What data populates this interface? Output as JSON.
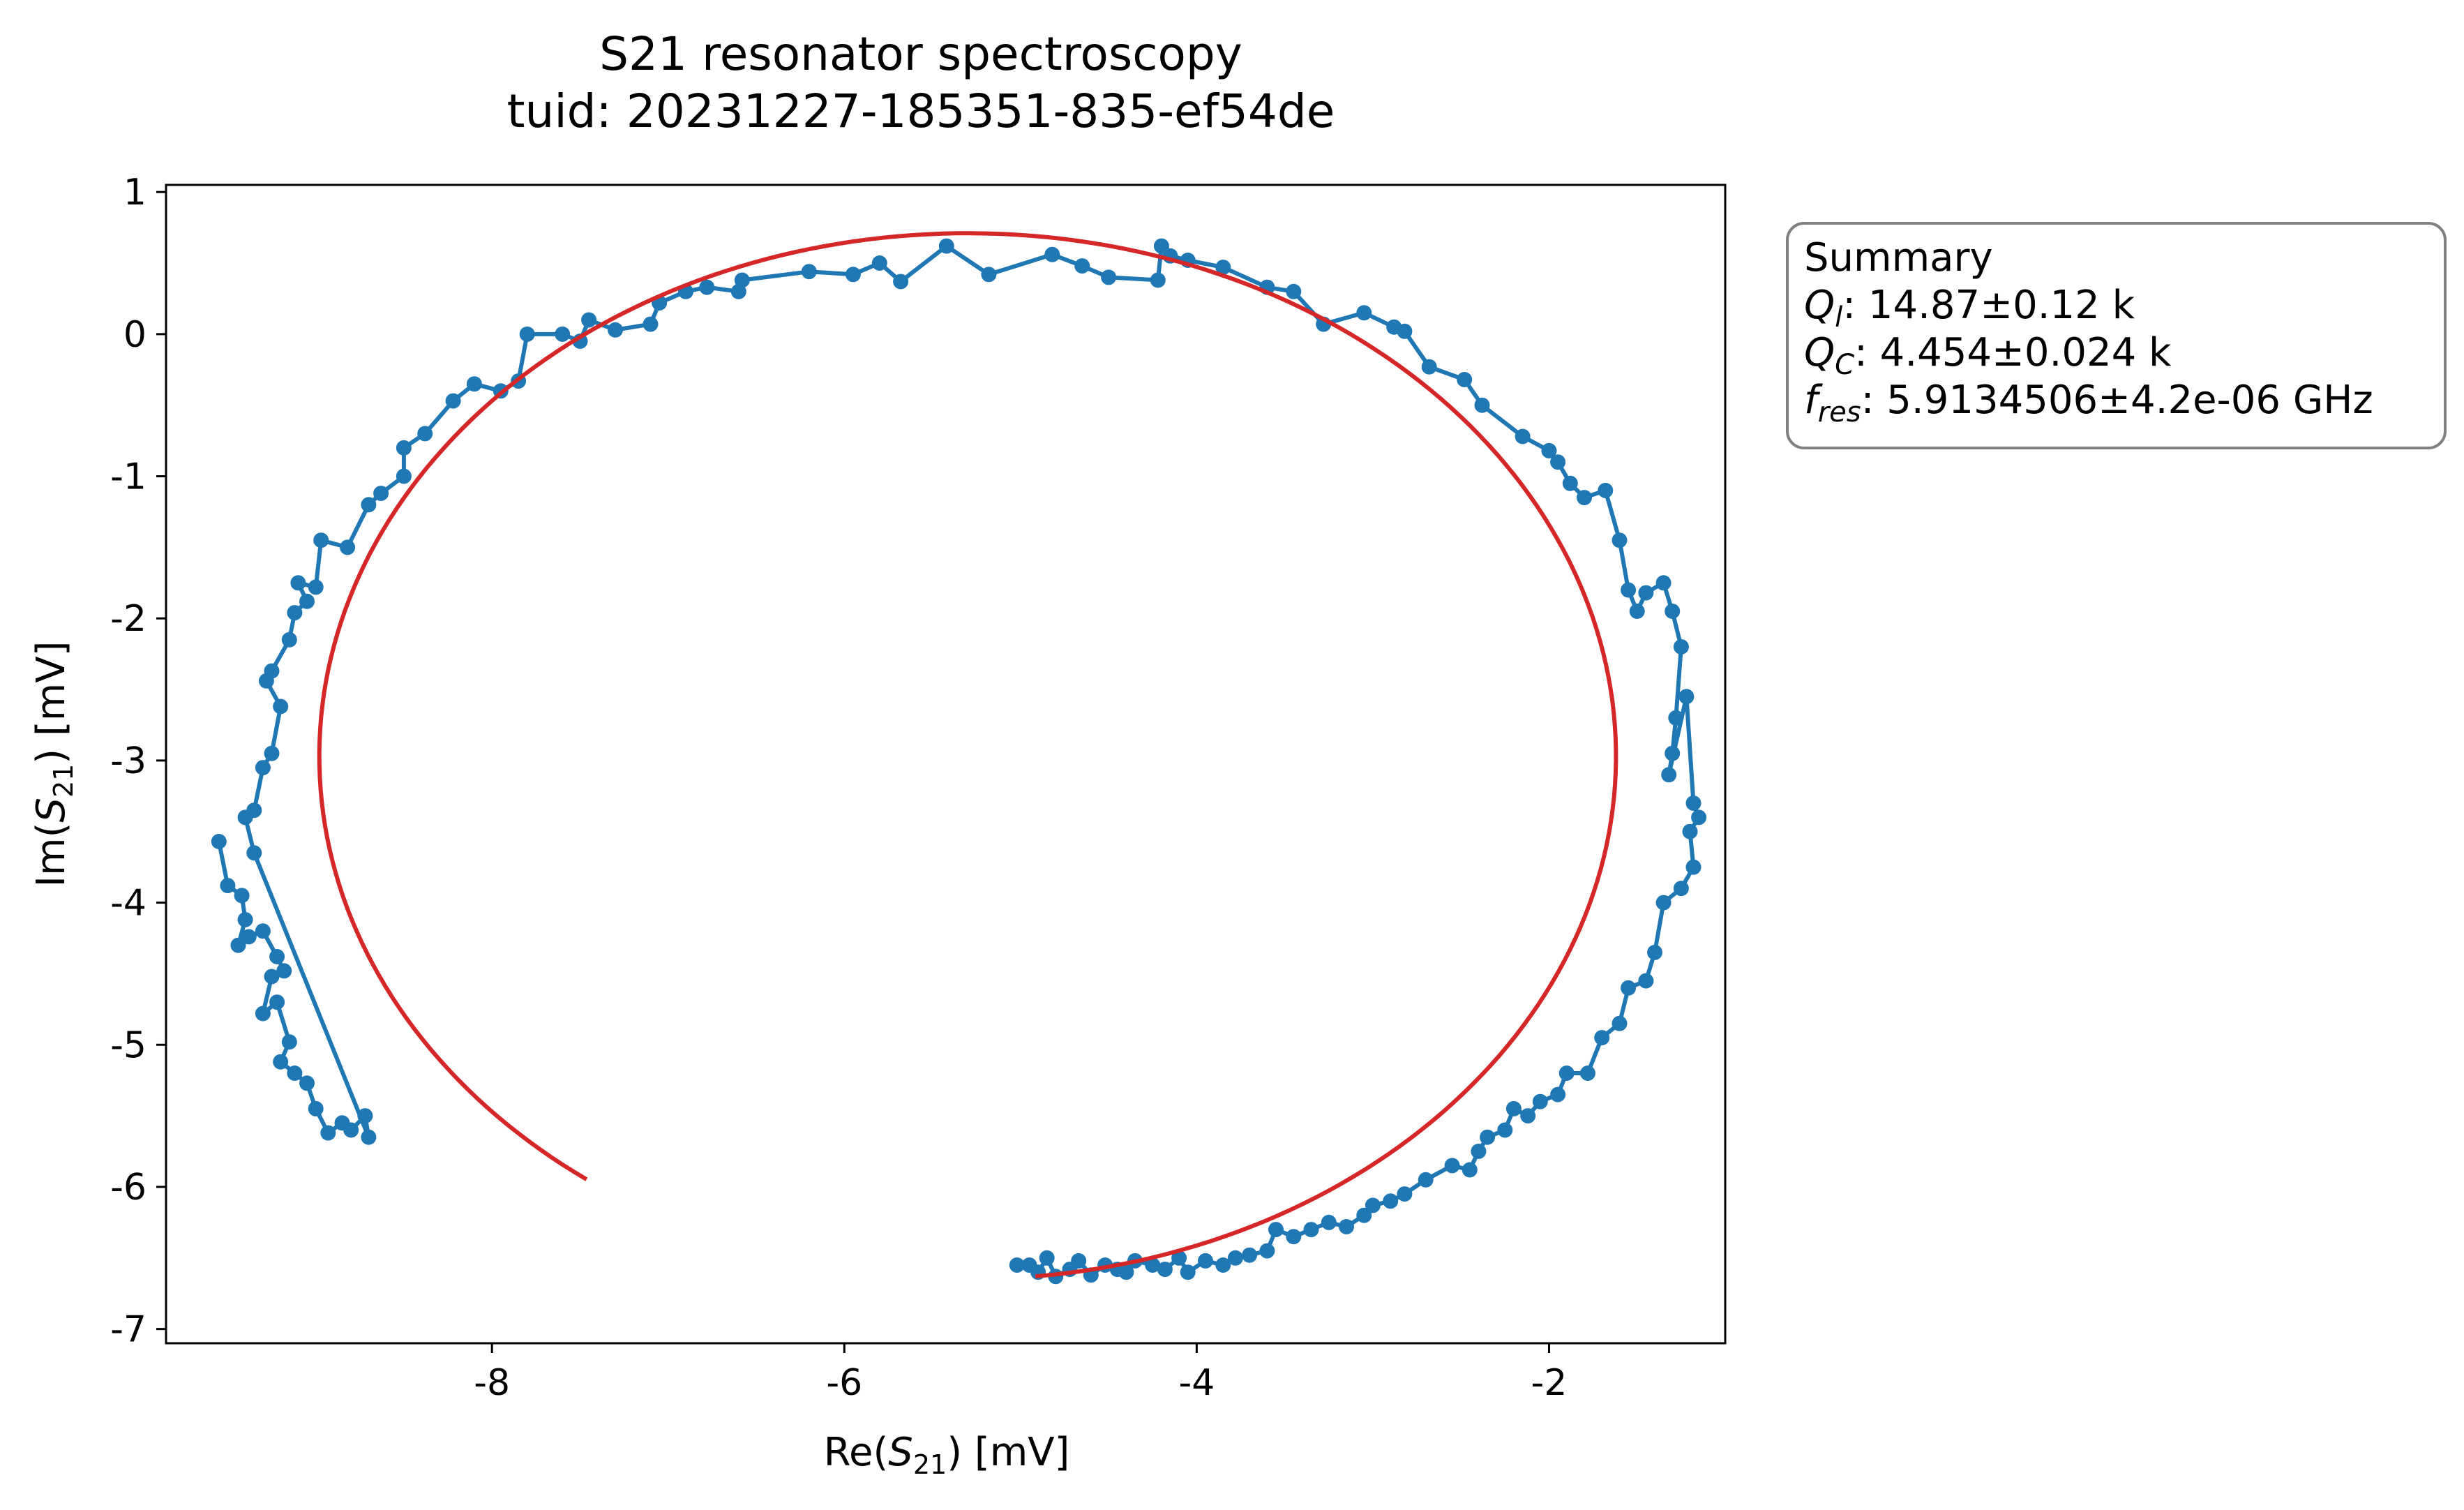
{
  "chart_data": {
    "type": "scatter",
    "title": "S21 resonator spectroscopy",
    "subtitle": "tuid: 20231227-185351-835-ef54de",
    "xlabel": "Re(S21) [mV]",
    "ylabel": "Im(S21) [mV]",
    "xlim": [
      -9.85,
      -1.0
    ],
    "ylim": [
      -7.1,
      1.05
    ],
    "xticks": [
      -8,
      -6,
      -4,
      -2
    ],
    "yticks": [
      1,
      0,
      -1,
      -2,
      -3,
      -4,
      -5,
      -6,
      -7
    ],
    "xtick_labels": [
      "-8",
      "-6",
      "-4",
      "-2"
    ],
    "ytick_labels": [
      "1",
      "0",
      "-1",
      "-2",
      "-3",
      "-4",
      "-5",
      "-6",
      "-7"
    ],
    "grid": false,
    "series": [
      {
        "role": "data",
        "style": "line+markers",
        "color": "#1f77b4",
        "points": [
          [
            -9.55,
            -3.57
          ],
          [
            -9.5,
            -3.88
          ],
          [
            -9.42,
            -3.95
          ],
          [
            -9.4,
            -4.12
          ],
          [
            -9.44,
            -4.3
          ],
          [
            -9.38,
            -4.24
          ],
          [
            -9.3,
            -4.2
          ],
          [
            -9.22,
            -4.38
          ],
          [
            -9.18,
            -4.48
          ],
          [
            -9.25,
            -4.52
          ],
          [
            -9.3,
            -4.78
          ],
          [
            -9.22,
            -4.7
          ],
          [
            -9.15,
            -4.98
          ],
          [
            -9.2,
            -5.12
          ],
          [
            -9.12,
            -5.2
          ],
          [
            -9.05,
            -5.27
          ],
          [
            -9.0,
            -5.45
          ],
          [
            -8.93,
            -5.62
          ],
          [
            -8.85,
            -5.55
          ],
          [
            -8.8,
            -5.6
          ],
          [
            -8.72,
            -5.5
          ],
          [
            -8.7,
            -5.65
          ],
          [
            -9.35,
            -3.65
          ],
          [
            -9.4,
            -3.4
          ],
          [
            -9.35,
            -3.35
          ],
          [
            -9.3,
            -3.05
          ],
          [
            -9.25,
            -2.95
          ],
          [
            -9.2,
            -2.62
          ],
          [
            -9.28,
            -2.44
          ],
          [
            -9.25,
            -2.37
          ],
          [
            -9.15,
            -2.15
          ],
          [
            -9.12,
            -1.96
          ],
          [
            -9.05,
            -1.88
          ],
          [
            -9.1,
            -1.75
          ],
          [
            -9.0,
            -1.78
          ],
          [
            -8.97,
            -1.45
          ],
          [
            -8.82,
            -1.5
          ],
          [
            -8.7,
            -1.2
          ],
          [
            -8.63,
            -1.12
          ],
          [
            -8.5,
            -1.0
          ],
          [
            -8.5,
            -0.8
          ],
          [
            -8.38,
            -0.7
          ],
          [
            -8.22,
            -0.47
          ],
          [
            -8.1,
            -0.35
          ],
          [
            -7.95,
            -0.4
          ],
          [
            -7.85,
            -0.33
          ],
          [
            -7.8,
            0.0
          ],
          [
            -7.6,
            0.0
          ],
          [
            -7.5,
            -0.05
          ],
          [
            -7.45,
            0.1
          ],
          [
            -7.3,
            0.03
          ],
          [
            -7.1,
            0.07
          ],
          [
            -7.05,
            0.22
          ],
          [
            -6.9,
            0.3
          ],
          [
            -6.78,
            0.33
          ],
          [
            -6.6,
            0.3
          ],
          [
            -6.58,
            0.38
          ],
          [
            -6.2,
            0.44
          ],
          [
            -5.95,
            0.42
          ],
          [
            -5.8,
            0.5
          ],
          [
            -5.68,
            0.37
          ],
          [
            -5.42,
            0.62
          ],
          [
            -5.18,
            0.42
          ],
          [
            -4.82,
            0.56
          ],
          [
            -4.65,
            0.48
          ],
          [
            -4.5,
            0.4
          ],
          [
            -4.22,
            0.38
          ],
          [
            -4.2,
            0.62
          ],
          [
            -4.15,
            0.55
          ],
          [
            -4.05,
            0.52
          ],
          [
            -3.85,
            0.47
          ],
          [
            -3.6,
            0.33
          ],
          [
            -3.45,
            0.3
          ],
          [
            -3.28,
            0.07
          ],
          [
            -3.05,
            0.15
          ],
          [
            -2.88,
            0.05
          ],
          [
            -2.82,
            0.02
          ],
          [
            -2.68,
            -0.23
          ],
          [
            -2.48,
            -0.32
          ],
          [
            -2.38,
            -0.5
          ],
          [
            -2.15,
            -0.72
          ],
          [
            -2.0,
            -0.82
          ],
          [
            -1.95,
            -0.9
          ],
          [
            -1.88,
            -1.05
          ],
          [
            -1.8,
            -1.15
          ],
          [
            -1.68,
            -1.1
          ],
          [
            -1.6,
            -1.45
          ],
          [
            -1.55,
            -1.8
          ],
          [
            -1.5,
            -1.95
          ],
          [
            -1.45,
            -1.82
          ],
          [
            -1.35,
            -1.75
          ],
          [
            -1.3,
            -1.95
          ],
          [
            -1.25,
            -2.2
          ],
          [
            -1.28,
            -2.7
          ],
          [
            -1.3,
            -2.95
          ],
          [
            -1.32,
            -3.1
          ],
          [
            -1.22,
            -2.55
          ],
          [
            -1.18,
            -3.3
          ],
          [
            -1.15,
            -3.4
          ],
          [
            -1.2,
            -3.5
          ],
          [
            -1.18,
            -3.75
          ],
          [
            -1.25,
            -3.9
          ],
          [
            -1.35,
            -4.0
          ],
          [
            -1.4,
            -4.35
          ],
          [
            -1.45,
            -4.55
          ],
          [
            -1.55,
            -4.6
          ],
          [
            -1.6,
            -4.85
          ],
          [
            -1.7,
            -4.95
          ],
          [
            -1.78,
            -5.2
          ],
          [
            -1.9,
            -5.2
          ],
          [
            -1.95,
            -5.35
          ],
          [
            -2.05,
            -5.4
          ],
          [
            -2.12,
            -5.5
          ],
          [
            -2.2,
            -5.45
          ],
          [
            -2.25,
            -5.6
          ],
          [
            -2.35,
            -5.65
          ],
          [
            -2.4,
            -5.75
          ],
          [
            -2.45,
            -5.88
          ],
          [
            -2.55,
            -5.85
          ],
          [
            -2.7,
            -5.95
          ],
          [
            -2.82,
            -6.05
          ],
          [
            -2.9,
            -6.1
          ],
          [
            -3.0,
            -6.13
          ],
          [
            -3.05,
            -6.2
          ],
          [
            -3.15,
            -6.28
          ],
          [
            -3.25,
            -6.25
          ],
          [
            -3.35,
            -6.3
          ],
          [
            -3.45,
            -6.35
          ],
          [
            -3.55,
            -6.3
          ],
          [
            -3.6,
            -6.45
          ],
          [
            -3.7,
            -6.48
          ],
          [
            -3.78,
            -6.5
          ],
          [
            -3.85,
            -6.55
          ],
          [
            -3.95,
            -6.52
          ],
          [
            -4.05,
            -6.6
          ],
          [
            -4.1,
            -6.5
          ],
          [
            -4.18,
            -6.58
          ],
          [
            -4.25,
            -6.55
          ],
          [
            -4.35,
            -6.52
          ],
          [
            -4.4,
            -6.6
          ],
          [
            -4.45,
            -6.58
          ],
          [
            -4.52,
            -6.55
          ],
          [
            -4.6,
            -6.62
          ],
          [
            -4.67,
            -6.52
          ],
          [
            -4.72,
            -6.58
          ],
          [
            -4.8,
            -6.63
          ],
          [
            -4.85,
            -6.5
          ],
          [
            -4.9,
            -6.6
          ],
          [
            -4.95,
            -6.55
          ],
          [
            -5.02,
            -6.55
          ]
        ]
      },
      {
        "role": "fit",
        "style": "line",
        "color": "#d62728",
        "center": [
          -5.3,
          -2.97
        ],
        "radius": 3.68,
        "angle_start_deg": 234,
        "angle_end_deg": -84
      }
    ],
    "summary": {
      "heading": "Summary",
      "lines": [
        {
          "symbol": "Q",
          "subscript": "l",
          "text": ": 14.87±0.12 k"
        },
        {
          "symbol": "Q",
          "subscript": "C",
          "text": ": 4.454±0.024 k"
        },
        {
          "symbol": "f",
          "subscript": "res",
          "text": ": 5.9134506±4.2e-06 GHz"
        }
      ]
    }
  }
}
